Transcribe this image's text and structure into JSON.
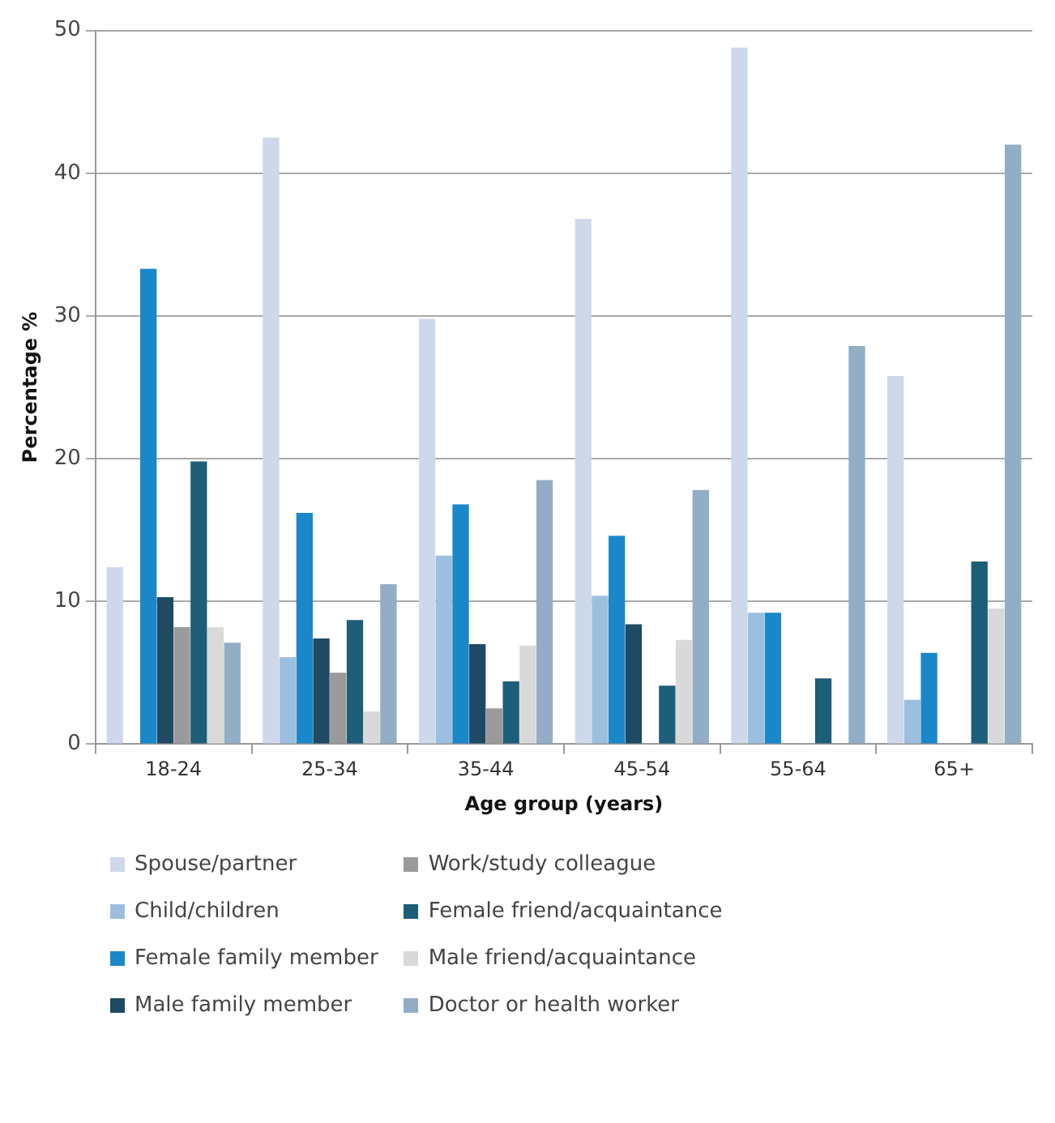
{
  "chart_data": {
    "type": "bar",
    "xlabel": "Age group (years)",
    "ylabel": "Percentage %",
    "categories": [
      "18-24",
      "25-34",
      "35-44",
      "45-54",
      "55-64",
      "65+"
    ],
    "series": [
      {
        "name": "Spouse/partner",
        "color": "#cdd9ea",
        "values": [
          12.4,
          42.5,
          29.8,
          36.8,
          48.8,
          25.8
        ]
      },
      {
        "name": "Child/children",
        "color": "#9dbfdf",
        "values": [
          0,
          6.1,
          13.2,
          10.4,
          9.2,
          3.1
        ]
      },
      {
        "name": "Female family member",
        "color": "#1a87c9",
        "values": [
          33.3,
          16.2,
          16.8,
          14.6,
          9.2,
          6.4
        ]
      },
      {
        "name": "Male family member",
        "color": "#1f4a63",
        "values": [
          10.3,
          7.4,
          7.0,
          8.4,
          0,
          0
        ]
      },
      {
        "name": "Work/study colleague",
        "color": "#9a9a9a",
        "values": [
          8.2,
          5.0,
          2.5,
          0,
          0,
          0
        ]
      },
      {
        "name": "Female friend/acquaintance",
        "color": "#1d5e78",
        "values": [
          19.8,
          8.7,
          4.4,
          4.1,
          4.6,
          12.8
        ]
      },
      {
        "name": "Male friend/acquaintance",
        "color": "#d9d9d9",
        "values": [
          8.2,
          2.3,
          6.9,
          7.3,
          0,
          9.5
        ]
      },
      {
        "name": "Doctor or health worker",
        "color": "#91aec6",
        "values": [
          7.1,
          11.2,
          18.5,
          17.8,
          27.9,
          42.0
        ]
      }
    ],
    "ylim": [
      0,
      50
    ],
    "yticks": [
      0,
      10,
      20,
      30,
      40,
      50
    ],
    "grid": "y",
    "legend": "bottom"
  }
}
